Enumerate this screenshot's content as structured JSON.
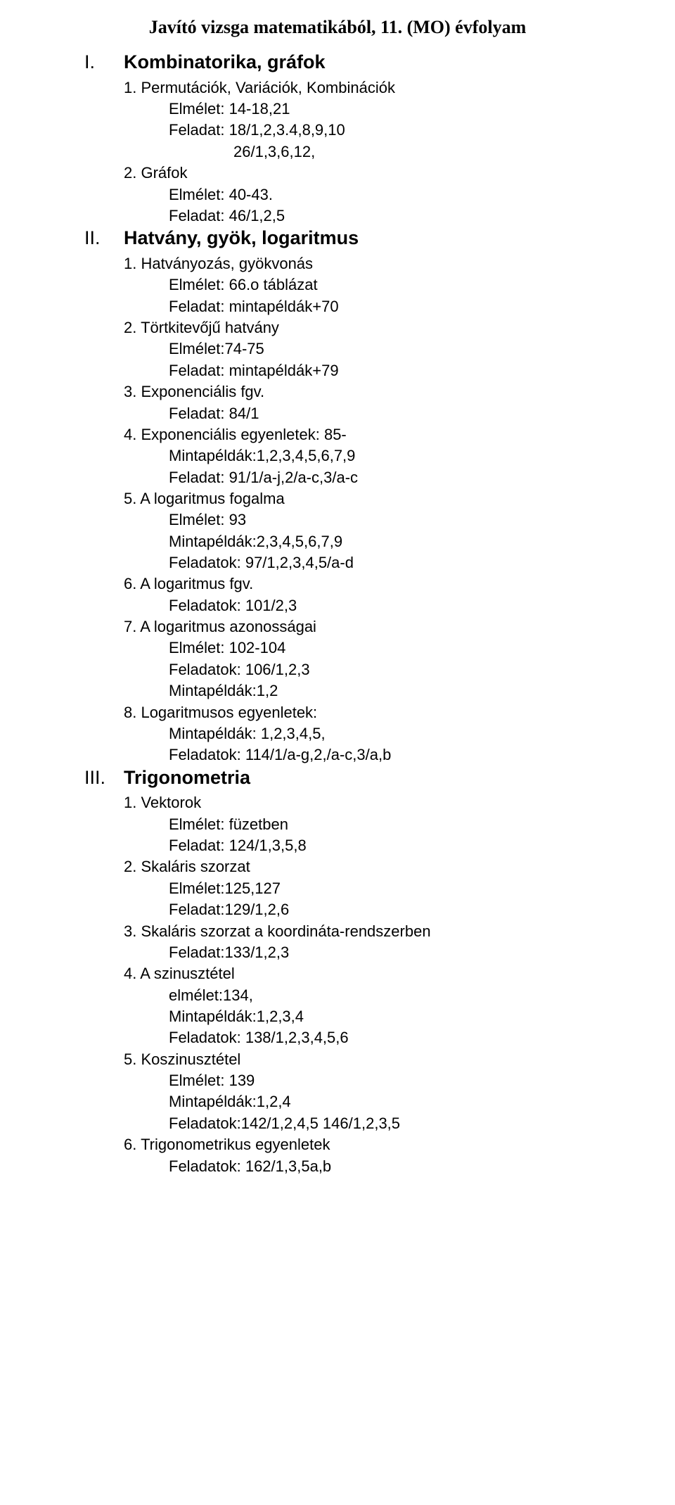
{
  "title": "Javító vizsga matematikából, 11. (MO)  évfolyam",
  "sections": [
    {
      "roman": "I.",
      "heading": "Kombinatorika, gráfok",
      "lines": [
        {
          "text": "1. Permutációk, Variációk, Kombinációk"
        },
        {
          "text": "Elmélet: 14-18,21",
          "cls": "indent1"
        },
        {
          "text": "Feladat: 18/1,2,3.4,8,9,10",
          "cls": "indent1"
        },
        {
          "text": "26/1,3,6,12,",
          "cls": "indent2"
        },
        {
          "text": "2. Gráfok"
        },
        {
          "text": "Elmélet: 40-43.",
          "cls": "indent1"
        },
        {
          "text": "Feladat: 46/1,2,5",
          "cls": "indent1"
        }
      ]
    },
    {
      "roman": "II.",
      "heading": "Hatvány, gyök, logaritmus",
      "lines": [
        {
          "text": "1. Hatványozás, gyökvonás"
        },
        {
          "text": "Elmélet: 66.o táblázat",
          "cls": "indent1"
        },
        {
          "text": "Feladat: mintapéldák+70",
          "cls": "indent1"
        },
        {
          "text": "2. Törtkitevőjű hatvány"
        },
        {
          "text": "Elmélet:74-75",
          "cls": "indent1"
        },
        {
          "text": "Feladat: mintapéldák+79",
          "cls": "indent1"
        },
        {
          "text": "3. Exponenciális fgv."
        },
        {
          "text": "Feladat: 84/1",
          "cls": "indent1"
        },
        {
          "text": "4. Exponenciális egyenletek: 85-"
        },
        {
          "text": "Mintapéldák:1,2,3,4,5,6,7,9",
          "cls": "indent1"
        },
        {
          "text": "Feladat: 91/1/a-j,2/a-c,3/a-c",
          "cls": "indent1"
        },
        {
          "text": "5. A logaritmus fogalma"
        },
        {
          "text": "Elmélet: 93",
          "cls": "indent1"
        },
        {
          "text": "Mintapéldák:2,3,4,5,6,7,9",
          "cls": "indent1"
        },
        {
          "text": "Feladatok: 97/1,2,3,4,5/a-d",
          "cls": "indent1"
        },
        {
          "text": "6. A logaritmus fgv."
        },
        {
          "text": "Feladatok: 101/2,3",
          "cls": "indent1"
        },
        {
          "text": "7. A logaritmus azonosságai"
        },
        {
          "text": "Elmélet: 102-104",
          "cls": "indent1"
        },
        {
          "text": "Feladatok: 106/1,2,3",
          "cls": "indent1"
        },
        {
          "text": "Mintapéldák:1,2",
          "cls": "indent1"
        },
        {
          "text": "8. Logaritmusos egyenletek:"
        },
        {
          "text": "Mintapéldák: 1,2,3,4,5,",
          "cls": "indent1"
        },
        {
          "text": "Feladatok: 114/1/a-g,2,/a-c,3/a,b",
          "cls": "indent1"
        }
      ]
    },
    {
      "roman": "III.",
      "heading": "Trigonometria",
      "lines": [
        {
          "text": "1. Vektorok"
        },
        {
          "text": "Elmélet: füzetben",
          "cls": "indent1"
        },
        {
          "text": "Feladat: 124/1,3,5,8",
          "cls": "indent1"
        },
        {
          "text": "2. Skaláris szorzat"
        },
        {
          "text": "Elmélet:125,127",
          "cls": "indent1"
        },
        {
          "text": "Feladat:129/1,2,6",
          "cls": "indent1"
        },
        {
          "text": "3. Skaláris szorzat a koordináta-rendszerben"
        },
        {
          "text": "Feladat:133/1,2,3",
          "cls": "indent1"
        },
        {
          "text": "4. A szinusztétel"
        },
        {
          "text": "elmélet:134,",
          "cls": "indent1"
        },
        {
          "text": "Mintapéldák:1,2,3,4",
          "cls": "indent1"
        },
        {
          "text": "Feladatok: 138/1,2,3,4,5,6",
          "cls": "indent1"
        },
        {
          "text": "5. Koszinusztétel"
        },
        {
          "text": "Elmélet: 139",
          "cls": "indent1"
        },
        {
          "text": "Mintapéldák:1,2,4",
          "cls": "indent1"
        },
        {
          "text": "Feladatok:142/1,2,4,5 146/1,2,3,5",
          "cls": "indent1"
        },
        {
          "text": "6. Trigonometrikus egyenletek"
        },
        {
          "text": "Feladatok: 162/1,3,5a,b",
          "cls": "indent1"
        }
      ]
    }
  ]
}
